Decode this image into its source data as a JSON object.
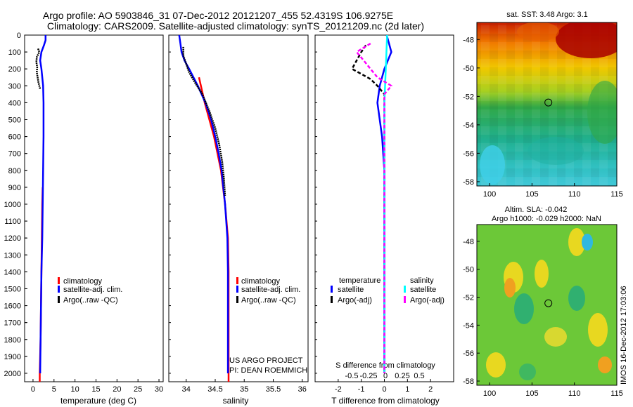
{
  "title_line1": "Argo profile: AO 5903846_31 07-Dec-2012 20121207_455 52.4319S 106.9275E",
  "title_line2": "Climatology: CARS2009. Satellite-adjusted climatology: synTS_20121209.nc (2d later)",
  "colors": {
    "climatology": "#ff0000",
    "satellite_adj": "#0000ff",
    "argo": "#000000",
    "temp_satellite": "#0000ff",
    "sal_satellite": "#00ffff",
    "sal_argo": "#ff00ff"
  },
  "chart_data": [
    {
      "type": "line",
      "id": "temperature",
      "xlabel": "temperature (deg C)",
      "xticks": [
        "0",
        "5",
        "10",
        "15",
        "20",
        "25",
        "30"
      ],
      "xlim": [
        -2,
        31
      ],
      "ylim": [
        2050,
        0
      ],
      "yticks": [
        "0",
        "100",
        "200",
        "300",
        "400",
        "500",
        "600",
        "700",
        "800",
        "900",
        "1000",
        "1100",
        "1200",
        "1300",
        "1400",
        "1500",
        "1600",
        "1700",
        "1800",
        "1900",
        "2000"
      ],
      "legend": [
        "climatology",
        "satellite-adj. clim.",
        "Argo(..raw -QC)"
      ],
      "series": [
        {
          "name": "climatology",
          "depth": [
            900,
            1000,
            1100,
            1200,
            1400,
            1600,
            1800,
            2000,
            2050
          ],
          "values": [
            2.3,
            2.2,
            2.15,
            2.1,
            2.0,
            1.9,
            1.8,
            1.6,
            1.6
          ]
        },
        {
          "name": "satellite-adj. clim.",
          "depth": [
            0,
            30,
            60,
            100,
            150,
            200,
            300,
            400,
            500,
            600,
            800,
            1000,
            1200,
            1400,
            1600,
            1800,
            2000
          ],
          "values": [
            3.0,
            3.0,
            2.6,
            2.0,
            1.7,
            2.0,
            2.4,
            2.5,
            2.5,
            2.5,
            2.4,
            2.3,
            2.2,
            2.0,
            1.9,
            1.8,
            1.7
          ]
        },
        {
          "name": "Argo(..raw -QC)",
          "depth": [
            80,
            100,
            130,
            160,
            190,
            220,
            250,
            280,
            300,
            320
          ],
          "values": [
            1.2,
            1.5,
            0.9,
            0.8,
            1.0,
            0.9,
            1.1,
            1.3,
            1.5,
            1.7
          ]
        }
      ]
    },
    {
      "type": "line",
      "id": "salinity",
      "xlabel": "salinity",
      "xticks": [
        "34",
        "34.5",
        "35",
        "35.5",
        "36"
      ],
      "xlim": [
        33.7,
        36.1
      ],
      "ylim": [
        2050,
        0
      ],
      "legend": [
        "climatology",
        "satellite-adj. clim.",
        "Argo(..raw -QC)"
      ],
      "annotation": [
        "US ARGO PROJECT",
        "PI: DEAN ROEMMICH"
      ],
      "series": [
        {
          "name": "climatology",
          "depth": [
            250,
            400,
            600,
            800,
            1000,
            1200,
            1400,
            1600,
            1800,
            2000,
            2050
          ],
          "values": [
            34.22,
            34.32,
            34.48,
            34.6,
            34.67,
            34.72,
            34.73,
            34.73,
            34.73,
            34.73,
            34.73
          ]
        },
        {
          "name": "satellite-adj. clim.",
          "depth": [
            0,
            50,
            100,
            150,
            200,
            300,
            400,
            500,
            600,
            700,
            800,
            900,
            1000,
            1200,
            1400,
            1600,
            1800,
            2000
          ],
          "values": [
            33.88,
            33.9,
            33.92,
            33.97,
            34.05,
            34.2,
            34.33,
            34.43,
            34.5,
            34.56,
            34.61,
            34.64,
            34.67,
            34.71,
            34.72,
            34.72,
            34.72,
            34.72
          ]
        },
        {
          "name": "Argo(..raw -QC)",
          "depth": [
            70,
            120,
            170,
            220,
            280,
            350,
            450,
            550,
            650,
            750,
            850,
            950
          ],
          "values": [
            33.95,
            33.95,
            34.0,
            34.05,
            34.15,
            34.28,
            34.4,
            34.5,
            34.57,
            34.62,
            34.65,
            34.67
          ]
        }
      ]
    },
    {
      "type": "line",
      "id": "difference",
      "xlabel": "T difference from climatology",
      "xlabel_top": "S difference from climatology",
      "xticks": [
        "-2",
        "-1",
        "0",
        "1",
        "2"
      ],
      "xticks_s": [
        "-0.5",
        "-0.25",
        "0",
        "0.25",
        "0.5"
      ],
      "xlim": [
        -3,
        3
      ],
      "ylim": [
        2050,
        0
      ],
      "legend_titles": [
        "temperature",
        "salinity"
      ],
      "legend": [
        "satellite",
        "Argo(-adj)",
        "satellite",
        "Argo(-adj)"
      ],
      "series": [
        {
          "name": "temperature satellite",
          "depth": [
            0,
            50,
            100,
            200,
            300,
            400,
            600,
            800,
            1000,
            1400,
            2000
          ],
          "values": [
            0.1,
            0.2,
            0.3,
            0.0,
            -0.2,
            -0.3,
            -0.1,
            0.0,
            0.0,
            0.0,
            0.0
          ]
        },
        {
          "name": "temperature Argo(-adj)",
          "depth": [
            60,
            100,
            150,
            200,
            230,
            260,
            300,
            350,
            400,
            600,
            800,
            1000,
            1400,
            2000
          ],
          "values": [
            -0.8,
            -1.0,
            -1.2,
            -1.4,
            -1.0,
            -0.6,
            -0.3,
            0.0,
            0.0,
            0.0,
            0.0,
            0.0,
            0.0,
            0.0
          ]
        },
        {
          "name": "salinity satellite",
          "depth": [
            0,
            200,
            400,
            600,
            800,
            1000,
            1400,
            2000
          ],
          "values": [
            0.02,
            0.01,
            0.0,
            0.0,
            0.0,
            0.0,
            0.0,
            0.0
          ]
        },
        {
          "name": "salinity Argo(-adj)",
          "depth": [
            50,
            100,
            150,
            200,
            250,
            300,
            350,
            400,
            600,
            800,
            1000,
            1400,
            2000
          ],
          "values": [
            -0.1,
            -0.2,
            -0.15,
            -0.1,
            -0.05,
            0.05,
            0.0,
            0.0,
            0.0,
            0.0,
            0.0,
            0.0,
            0.0
          ]
        }
      ]
    },
    {
      "type": "heatmap",
      "id": "sst_map",
      "title": "sat. SST: 3.48 Argo: 3.1",
      "xticks": [
        "100",
        "105",
        "110",
        "115"
      ],
      "yticks": [
        "-48",
        "-50",
        "-52",
        "-54",
        "-56",
        "-58"
      ],
      "xlim": [
        98.5,
        115
      ],
      "ylim": [
        -58.3,
        -46.8
      ],
      "marker": {
        "lon": 106.93,
        "lat": -52.43
      }
    },
    {
      "type": "heatmap",
      "id": "sla_map",
      "title_line1": "Altim. SLA: -0.042",
      "title_line2": "Argo h1000: -0.029 h2000: NaN",
      "side_label": "IMOS 16-Dec-2012 17:03:06",
      "xticks": [
        "100",
        "105",
        "110",
        "115"
      ],
      "yticks": [
        "-48",
        "-50",
        "-52",
        "-54",
        "-56",
        "-58"
      ],
      "xlim": [
        98.5,
        115
      ],
      "ylim": [
        -58.3,
        -46.8
      ],
      "marker": {
        "lon": 106.93,
        "lat": -52.43
      }
    }
  ]
}
